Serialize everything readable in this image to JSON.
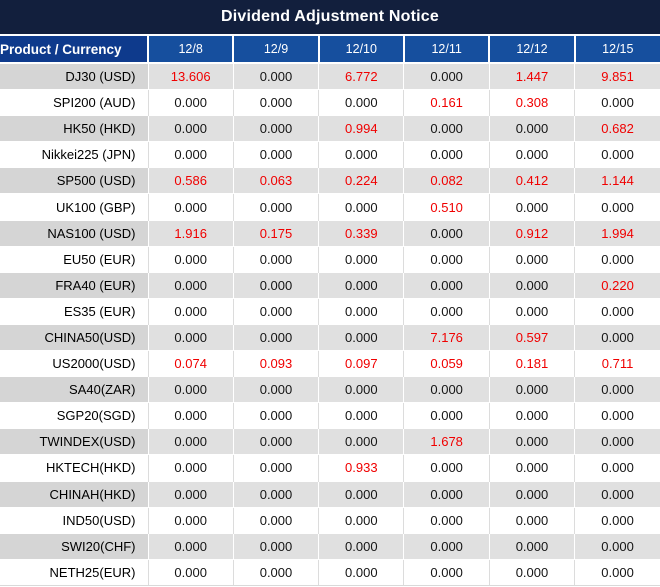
{
  "title": "Dividend Adjustment Notice",
  "chart_data": {
    "type": "table",
    "title": "Dividend Adjustment Notice",
    "product_header": "Product / Currency",
    "date_columns": [
      "12/8",
      "12/9",
      "12/10",
      "12/11",
      "12/12",
      "12/15"
    ],
    "rows": [
      {
        "product": "DJ30 (USD)",
        "values": [
          "13.606",
          "0.000",
          "6.772",
          "0.000",
          "1.447",
          "9.851"
        ]
      },
      {
        "product": "SPI200 (AUD)",
        "values": [
          "0.000",
          "0.000",
          "0.000",
          "0.161",
          "0.308",
          "0.000"
        ]
      },
      {
        "product": "HK50 (HKD)",
        "values": [
          "0.000",
          "0.000",
          "0.994",
          "0.000",
          "0.000",
          "0.682"
        ]
      },
      {
        "product": "Nikkei225 (JPN)",
        "values": [
          "0.000",
          "0.000",
          "0.000",
          "0.000",
          "0.000",
          "0.000"
        ]
      },
      {
        "product": "SP500 (USD)",
        "values": [
          "0.586",
          "0.063",
          "0.224",
          "0.082",
          "0.412",
          "1.144"
        ]
      },
      {
        "product": "UK100 (GBP)",
        "values": [
          "0.000",
          "0.000",
          "0.000",
          "0.510",
          "0.000",
          "0.000"
        ]
      },
      {
        "product": "NAS100 (USD)",
        "values": [
          "1.916",
          "0.175",
          "0.339",
          "0.000",
          "0.912",
          "1.994"
        ]
      },
      {
        "product": "EU50 (EUR)",
        "values": [
          "0.000",
          "0.000",
          "0.000",
          "0.000",
          "0.000",
          "0.000"
        ]
      },
      {
        "product": "FRA40 (EUR)",
        "values": [
          "0.000",
          "0.000",
          "0.000",
          "0.000",
          "0.000",
          "0.220"
        ]
      },
      {
        "product": "ES35 (EUR)",
        "values": [
          "0.000",
          "0.000",
          "0.000",
          "0.000",
          "0.000",
          "0.000"
        ]
      },
      {
        "product": "CHINA50(USD)",
        "values": [
          "0.000",
          "0.000",
          "0.000",
          "7.176",
          "0.597",
          "0.000"
        ]
      },
      {
        "product": "US2000(USD)",
        "values": [
          "0.074",
          "0.093",
          "0.097",
          "0.059",
          "0.181",
          "0.711"
        ]
      },
      {
        "product": "SA40(ZAR)",
        "values": [
          "0.000",
          "0.000",
          "0.000",
          "0.000",
          "0.000",
          "0.000"
        ]
      },
      {
        "product": "SGP20(SGD)",
        "values": [
          "0.000",
          "0.000",
          "0.000",
          "0.000",
          "0.000",
          "0.000"
        ]
      },
      {
        "product": "TWINDEX(USD)",
        "values": [
          "0.000",
          "0.000",
          "0.000",
          "1.678",
          "0.000",
          "0.000"
        ]
      },
      {
        "product": "HKTECH(HKD)",
        "values": [
          "0.000",
          "0.000",
          "0.933",
          "0.000",
          "0.000",
          "0.000"
        ]
      },
      {
        "product": "CHINAH(HKD)",
        "values": [
          "0.000",
          "0.000",
          "0.000",
          "0.000",
          "0.000",
          "0.000"
        ]
      },
      {
        "product": "IND50(USD)",
        "values": [
          "0.000",
          "0.000",
          "0.000",
          "0.000",
          "0.000",
          "0.000"
        ]
      },
      {
        "product": "SWI20(CHF)",
        "values": [
          "0.000",
          "0.000",
          "0.000",
          "0.000",
          "0.000",
          "0.000"
        ]
      },
      {
        "product": "NETH25(EUR)",
        "values": [
          "0.000",
          "0.000",
          "0.000",
          "0.000",
          "0.000",
          "0.000"
        ]
      }
    ],
    "layout_hints": {
      "striped_rows": "odd data rows shaded gray",
      "nonzero_values_highlighted": true
    }
  },
  "colors": {
    "title_bg": "#121F3D",
    "product_header_bg": "#0E3A8C",
    "date_header_bg": "#164F9E",
    "header_text": "#FFFFFF",
    "stripe_product": "#D5D5D5",
    "stripe_values": "#E0E0E0",
    "value_zero": "#151515",
    "value_nonzero": "#F00000"
  }
}
